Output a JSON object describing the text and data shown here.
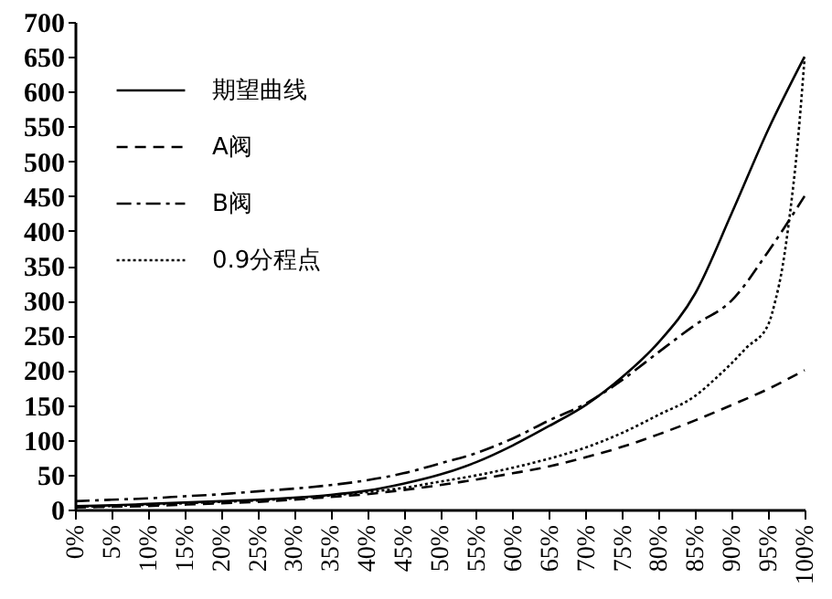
{
  "chart_data": {
    "type": "line",
    "x": [
      0,
      5,
      10,
      15,
      20,
      25,
      30,
      35,
      40,
      45,
      50,
      55,
      60,
      65,
      70,
      75,
      80,
      85,
      90,
      95,
      100
    ],
    "xlim": [
      0,
      100
    ],
    "xticks": [
      {
        "value": 0,
        "label": "0%"
      },
      {
        "value": 5,
        "label": "5%"
      },
      {
        "value": 10,
        "label": "10%"
      },
      {
        "value": 15,
        "label": "15%"
      },
      {
        "value": 20,
        "label": "20%"
      },
      {
        "value": 25,
        "label": "25%"
      },
      {
        "value": 30,
        "label": "30%"
      },
      {
        "value": 35,
        "label": "35%"
      },
      {
        "value": 40,
        "label": "40%"
      },
      {
        "value": 45,
        "label": "45%"
      },
      {
        "value": 50,
        "label": "50%"
      },
      {
        "value": 55,
        "label": "55%"
      },
      {
        "value": 60,
        "label": "60%"
      },
      {
        "value": 65,
        "label": "65%"
      },
      {
        "value": 70,
        "label": "70%"
      },
      {
        "value": 75,
        "label": "75%"
      },
      {
        "value": 80,
        "label": "80%"
      },
      {
        "value": 85,
        "label": "85%"
      },
      {
        "value": 90,
        "label": "90%"
      },
      {
        "value": 95,
        "label": "95%"
      },
      {
        "value": 100,
        "label": "100%"
      }
    ],
    "ylim": [
      0,
      700
    ],
    "yticks": [
      0,
      50,
      100,
      150,
      200,
      250,
      300,
      350,
      400,
      450,
      500,
      550,
      600,
      650,
      700
    ],
    "legend": "top left",
    "grid": false,
    "marker": "none",
    "series": [
      {
        "name": "期望曲线",
        "color": "#000000",
        "line_style": "solid",
        "values": [
          5,
          6,
          8,
          10,
          12,
          14,
          17,
          21,
          27,
          37,
          50,
          68,
          92,
          120,
          150,
          190,
          240,
          310,
          425,
          545,
          650
        ]
      },
      {
        "name": "A阀",
        "color": "#000000",
        "line_style": "dashed",
        "values": [
          3,
          4,
          5,
          7,
          9,
          11,
          14,
          18,
          22,
          28,
          35,
          43,
          52,
          62,
          75,
          90,
          108,
          128,
          150,
          173,
          200
        ]
      },
      {
        "name": "B阀",
        "color": "#000000",
        "line_style": "dashdot",
        "values": [
          12,
          14,
          16,
          19,
          22,
          26,
          30,
          35,
          42,
          52,
          66,
          81,
          102,
          128,
          152,
          186,
          226,
          265,
          300,
          370,
          450
        ]
      },
      {
        "name": "0.9分程点",
        "color": "#000000",
        "line_style": "dotted",
        "x": [
          0,
          5,
          10,
          15,
          20,
          25,
          30,
          35,
          40,
          45,
          50,
          55,
          60,
          65,
          70,
          75,
          80,
          85,
          88,
          90,
          92,
          95,
          96,
          97,
          98,
          99,
          100
        ],
        "values": [
          4,
          5,
          7,
          9,
          11,
          13,
          16,
          20,
          25,
          31,
          40,
          49,
          60,
          73,
          89,
          110,
          136,
          163,
          190,
          210,
          232,
          265,
          300,
          350,
          425,
          520,
          648
        ]
      }
    ]
  }
}
